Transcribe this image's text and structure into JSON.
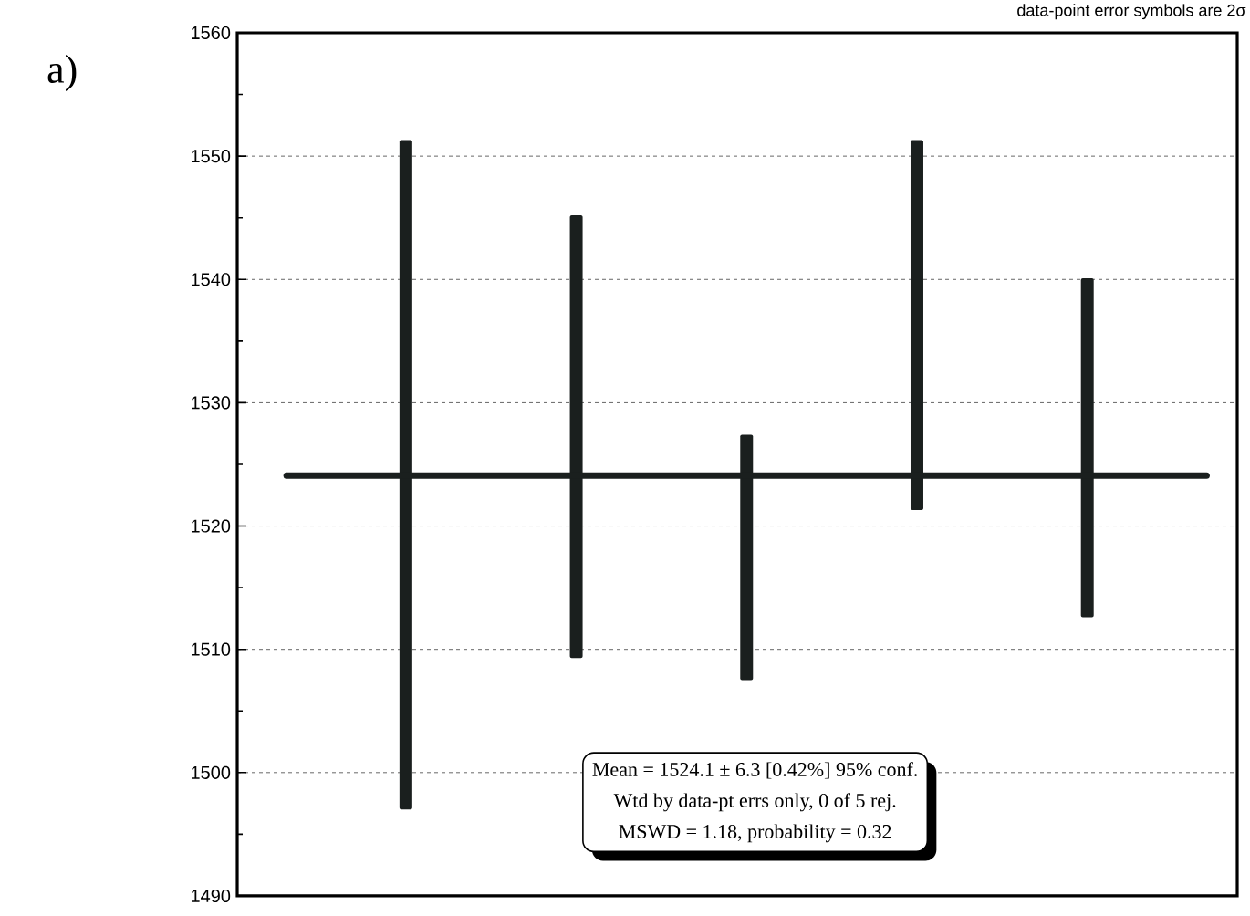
{
  "chart_data": {
    "type": "bar",
    "categories": [
      null,
      null,
      null,
      null,
      null
    ],
    "base": [
      1497,
      1509.3,
      1507.5,
      1521.3,
      1512.6
    ],
    "values": [
      54.3,
      35.9,
      19.9,
      30,
      27.5
    ],
    "color": "#1a1f1e",
    "ylim": [
      1490,
      1560
    ],
    "yticks": [
      1490,
      1500,
      1510,
      1520,
      1530,
      1540,
      1550,
      1560
    ],
    "grid": "y",
    "ref_lines": [
      {
        "axis": "y",
        "value": 1524.1,
        "color": "#1a1f1e"
      }
    ],
    "annotations": [
      "a)",
      "data-point error symbols are 2σ",
      "Mean  = 1524.1 ± 6.3  [0.42%]  95% conf.",
      "Wtd by data-pt errs only, 0 of 5 rej.",
      "MSWD = 1.18, probability = 0.32"
    ]
  }
}
